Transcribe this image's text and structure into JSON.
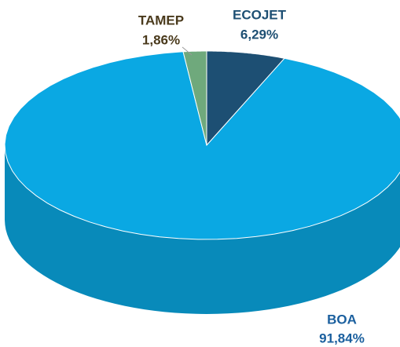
{
  "chart_data": {
    "type": "pie3d",
    "categories": [
      "ECOJET",
      "BOA",
      "TAMEP"
    ],
    "values": [
      6.29,
      91.84,
      1.86
    ],
    "value_labels": [
      "6,29%",
      "91,84%",
      "1,86%"
    ],
    "colors": [
      "#1d4f73",
      "#0aa8e3",
      "#6fa97c"
    ]
  }
}
